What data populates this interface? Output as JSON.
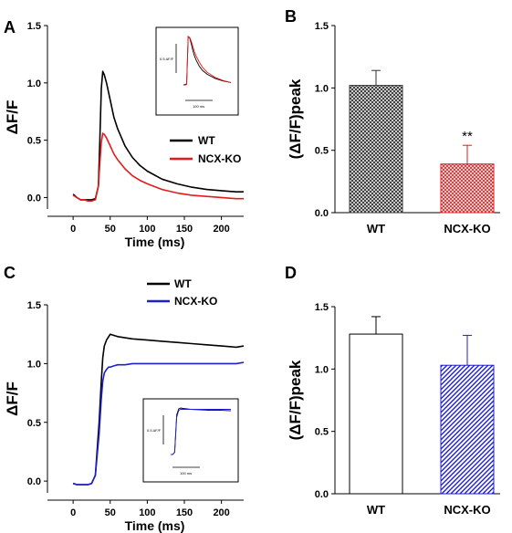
{
  "chart_data": [
    {
      "panel": "A",
      "type": "line",
      "xlabel": "Time (ms)",
      "ylabel": "ΔF/F",
      "xlim": [
        -10,
        230
      ],
      "ylim": [
        -0.1,
        1.5
      ],
      "xticks": [
        0,
        50,
        100,
        150,
        200
      ],
      "yticks": [
        0.0,
        0.5,
        1.0,
        1.5
      ],
      "legend_position": "right",
      "series": [
        {
          "name": "WT",
          "color": "#000000",
          "x": [
            0,
            5,
            10,
            15,
            20,
            25,
            30,
            34,
            36,
            38,
            40,
            42,
            45,
            50,
            55,
            60,
            70,
            80,
            90,
            100,
            120,
            140,
            160,
            180,
            200,
            220,
            230
          ],
          "y": [
            0.03,
            0.0,
            -0.02,
            -0.02,
            -0.02,
            -0.02,
            -0.01,
            0.1,
            0.5,
            0.95,
            1.1,
            1.07,
            1.0,
            0.85,
            0.7,
            0.6,
            0.45,
            0.35,
            0.28,
            0.23,
            0.16,
            0.12,
            0.09,
            0.07,
            0.06,
            0.05,
            0.05
          ]
        },
        {
          "name": "NCX-KO",
          "color": "#e41a1c",
          "x": [
            0,
            5,
            10,
            15,
            20,
            25,
            30,
            34,
            36,
            38,
            40,
            42,
            45,
            50,
            55,
            60,
            70,
            80,
            90,
            100,
            120,
            140,
            160,
            180,
            200,
            220,
            230
          ],
          "y": [
            0.02,
            0.0,
            -0.02,
            -0.02,
            -0.03,
            -0.03,
            -0.02,
            0.1,
            0.3,
            0.48,
            0.56,
            0.55,
            0.52,
            0.45,
            0.38,
            0.33,
            0.25,
            0.19,
            0.15,
            0.12,
            0.07,
            0.04,
            0.02,
            0.01,
            0.0,
            -0.01,
            -0.01
          ]
        }
      ],
      "inset": {
        "scale_y": "0.5 ΔF/F",
        "scale_x": "100 ms",
        "series": [
          {
            "color": "#000000",
            "x": [
              0,
              1,
              2,
              3,
              4,
              5,
              6,
              7,
              8,
              10,
              12,
              15,
              20,
              25,
              30
            ],
            "y": [
              0.05,
              0.06,
              0.07,
              1.0,
              0.97,
              0.85,
              0.72,
              0.62,
              0.54,
              0.42,
              0.34,
              0.26,
              0.18,
              0.13,
              0.1
            ]
          },
          {
            "color": "#e41a1c",
            "x": [
              0,
              1,
              2,
              3,
              4,
              5,
              6,
              7,
              8,
              10,
              12,
              15,
              20,
              25,
              30
            ],
            "y": [
              0.05,
              0.05,
              0.06,
              1.0,
              0.98,
              0.9,
              0.8,
              0.7,
              0.62,
              0.5,
              0.4,
              0.3,
              0.2,
              0.14,
              0.1
            ]
          }
        ]
      }
    },
    {
      "panel": "B",
      "type": "bar",
      "ylabel": "(ΔF/F)peak",
      "ylim": [
        0,
        1.5
      ],
      "yticks": [
        0.0,
        0.5,
        1.0,
        1.5
      ],
      "categories": [
        "WT",
        "NCX-KO"
      ],
      "values": [
        1.02,
        0.39
      ],
      "errors": [
        0.12,
        0.15
      ],
      "colors": [
        "#333333",
        "#e41a1c"
      ],
      "annotation": "**"
    },
    {
      "panel": "C",
      "type": "line",
      "xlabel": "Time (ms)",
      "ylabel": "ΔF/F",
      "xlim": [
        -10,
        230
      ],
      "ylim": [
        -0.1,
        1.5
      ],
      "xticks": [
        0,
        50,
        100,
        150,
        200
      ],
      "yticks": [
        0.0,
        0.5,
        1.0,
        1.5
      ],
      "legend_position": "top",
      "series": [
        {
          "name": "WT",
          "color": "#000000",
          "x": [
            0,
            5,
            10,
            15,
            20,
            25,
            30,
            35,
            38,
            40,
            42,
            45,
            48,
            50,
            55,
            60,
            70,
            80,
            100,
            120,
            140,
            160,
            180,
            200,
            220,
            230
          ],
          "y": [
            -0.02,
            -0.03,
            -0.03,
            -0.03,
            -0.03,
            -0.02,
            0.05,
            0.5,
            0.85,
            1.05,
            1.15,
            1.2,
            1.23,
            1.25,
            1.24,
            1.23,
            1.22,
            1.21,
            1.2,
            1.19,
            1.18,
            1.17,
            1.16,
            1.15,
            1.14,
            1.15
          ]
        },
        {
          "name": "NCX-KO",
          "color": "#1f1fcc",
          "x": [
            0,
            5,
            10,
            15,
            20,
            25,
            30,
            35,
            38,
            40,
            42,
            45,
            48,
            50,
            55,
            60,
            70,
            80,
            100,
            120,
            140,
            160,
            180,
            200,
            220,
            230
          ],
          "y": [
            -0.02,
            -0.03,
            -0.03,
            -0.03,
            -0.03,
            -0.02,
            0.05,
            0.4,
            0.7,
            0.85,
            0.92,
            0.95,
            0.97,
            0.97,
            0.98,
            0.99,
            0.99,
            1.0,
            1.0,
            1.0,
            1.0,
            1.0,
            1.0,
            1.0,
            1.0,
            1.01
          ]
        }
      ],
      "inset": {
        "scale_y": "0.5 ΔF/F",
        "scale_x": "100 ms",
        "series": [
          {
            "color": "#000000",
            "x": [
              0,
              1,
              2,
              3,
              4,
              5,
              6,
              8,
              10,
              15,
              20,
              25,
              30
            ],
            "y": [
              0.0,
              0.0,
              0.05,
              0.85,
              0.98,
              1.0,
              0.99,
              0.98,
              0.97,
              0.96,
              0.95,
              0.95,
              0.94
            ]
          },
          {
            "color": "#1f1fcc",
            "x": [
              0,
              1,
              2,
              3,
              4,
              5,
              6,
              8,
              10,
              15,
              20,
              25,
              30
            ],
            "y": [
              0.0,
              0.0,
              0.05,
              0.8,
              0.95,
              0.97,
              0.97,
              0.97,
              0.97,
              0.97,
              0.97,
              0.97,
              0.97
            ]
          }
        ]
      }
    },
    {
      "panel": "D",
      "type": "bar",
      "ylabel": "(ΔF/F)peak",
      "ylim": [
        0,
        1.5
      ],
      "yticks": [
        0.0,
        0.5,
        1.0,
        1.5
      ],
      "categories": [
        "WT",
        "NCX-KO"
      ],
      "values": [
        1.28,
        1.03
      ],
      "errors": [
        0.14,
        0.24
      ],
      "colors": [
        "#ffffff",
        "#1f1fcc"
      ]
    }
  ]
}
